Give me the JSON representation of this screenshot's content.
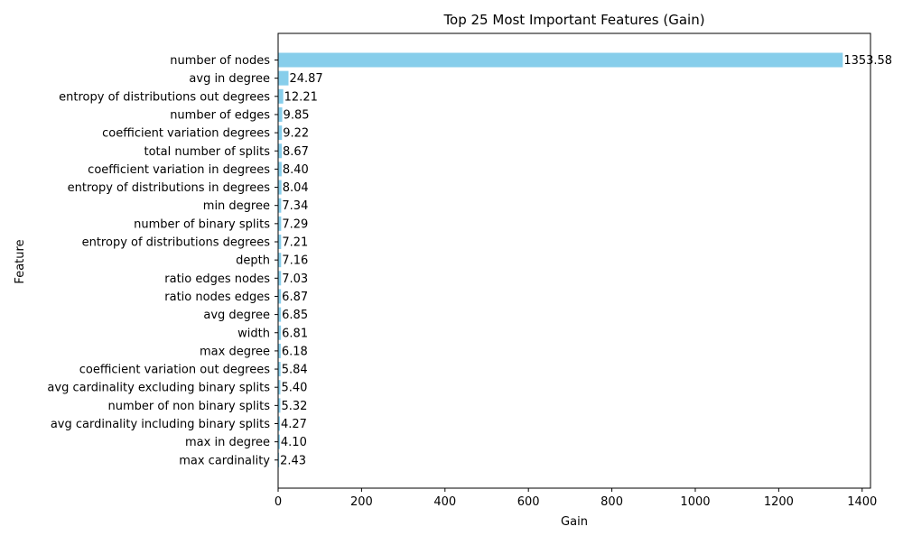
{
  "chart_data": {
    "type": "bar",
    "orientation": "horizontal",
    "title": "Top 25 Most Important Features (Gain)",
    "xlabel": "Gain",
    "ylabel": "Feature",
    "xlim": [
      0,
      1420
    ],
    "xticks": [
      0,
      200,
      400,
      600,
      800,
      1000,
      1200,
      1400
    ],
    "bar_color": "#87CEEB",
    "grid": false,
    "legend": "none",
    "categories": [
      "number of nodes",
      "avg in degree",
      "entropy of distributions out degrees",
      "number of edges",
      "coefficient variation degrees",
      "total number of splits",
      "coefficient variation in degrees",
      "entropy of distributions in degrees",
      "min degree",
      "number of binary splits",
      "entropy of distributions degrees",
      "depth",
      "ratio edges nodes",
      "ratio nodes edges",
      "avg degree",
      "width",
      "max degree",
      "coefficient variation out degrees",
      "avg cardinality excluding binary splits",
      "number of non binary splits",
      "avg cardinality including binary splits",
      "max in degree",
      "max cardinality"
    ],
    "values": [
      1353.58,
      24.87,
      12.21,
      9.85,
      9.22,
      8.67,
      8.4,
      8.04,
      7.34,
      7.29,
      7.21,
      7.16,
      7.03,
      6.87,
      6.85,
      6.81,
      6.18,
      5.84,
      5.4,
      5.32,
      4.27,
      4.1,
      2.43
    ],
    "value_labels": [
      "1353.58",
      "24.87",
      "12.21",
      "9.85",
      "9.22",
      "8.67",
      "8.40",
      "8.04",
      "7.34",
      "7.29",
      "7.21",
      "7.16",
      "7.03",
      "6.87",
      "6.85",
      "6.81",
      "6.18",
      "5.84",
      "5.40",
      "5.32",
      "4.27",
      "4.10",
      "2.43"
    ]
  }
}
